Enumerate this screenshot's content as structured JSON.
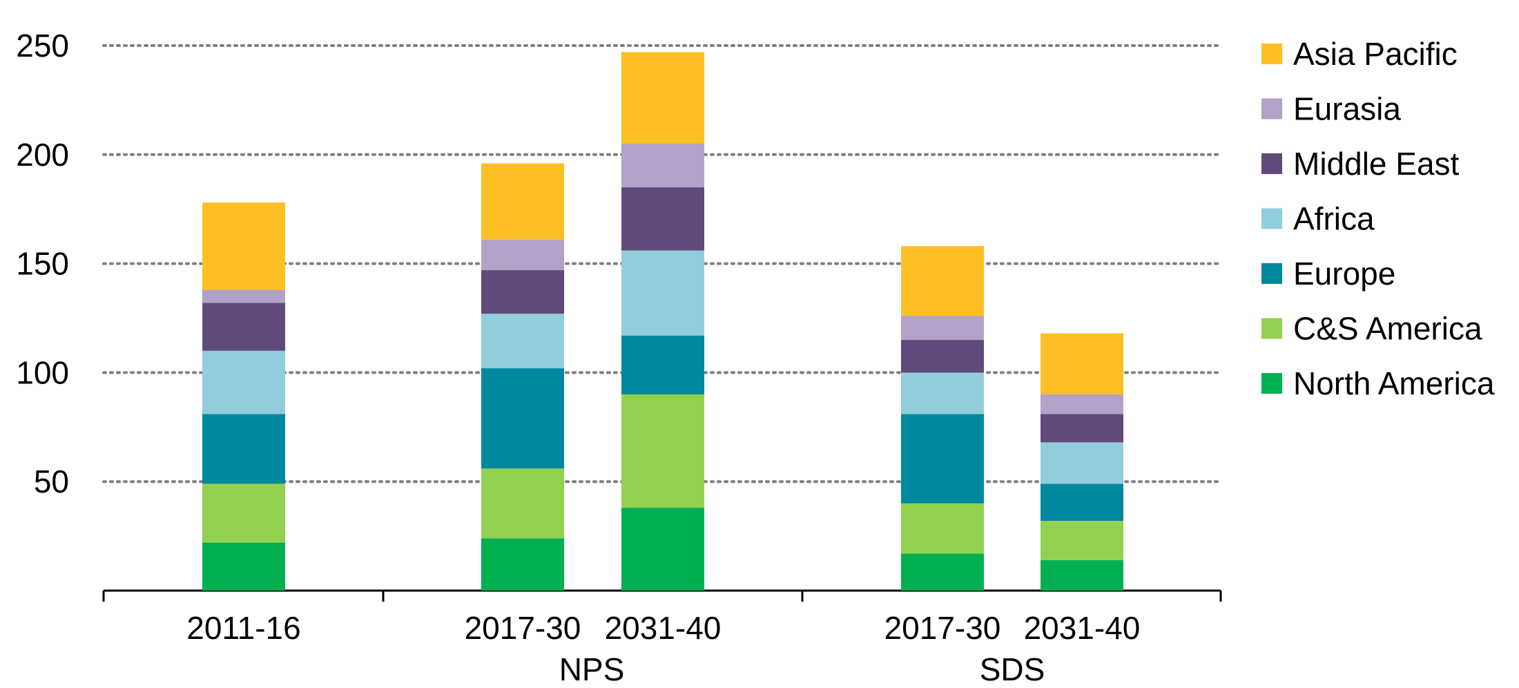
{
  "chart_data": {
    "type": "bar",
    "stacked": true,
    "title": "",
    "xlabel": "",
    "ylabel": "",
    "ylim": [
      0,
      250
    ],
    "yticks": [
      50,
      100,
      150,
      200,
      250
    ],
    "grid": true,
    "legend_position": "right",
    "bars": [
      {
        "label": "2011-16",
        "group": ""
      },
      {
        "label": "2017-30",
        "group": "NPS"
      },
      {
        "label": "2031-40",
        "group": "NPS"
      },
      {
        "label": "2017-30",
        "group": "SDS"
      },
      {
        "label": "2031-40",
        "group": "SDS"
      }
    ],
    "groups": [
      "NPS",
      "SDS"
    ],
    "series": [
      {
        "name": "North America",
        "color": "#00B050",
        "values": [
          22,
          24,
          38,
          17,
          14
        ]
      },
      {
        "name": "C&S America",
        "color": "#92D050",
        "values": [
          27,
          32,
          52,
          23,
          18
        ]
      },
      {
        "name": "Europe",
        "color": "#00889E",
        "values": [
          32,
          46,
          27,
          41,
          17
        ]
      },
      {
        "name": "Africa",
        "color": "#92CDDC",
        "values": [
          29,
          25,
          39,
          19,
          19
        ]
      },
      {
        "name": "Middle East",
        "color": "#604A7B",
        "values": [
          22,
          20,
          29,
          15,
          13
        ]
      },
      {
        "name": "Eurasia",
        "color": "#B3A2C7",
        "values": [
          6,
          14,
          20,
          11,
          9
        ]
      },
      {
        "name": "Asia Pacific",
        "color": "#FDBF24",
        "values": [
          40,
          35,
          42,
          32,
          28
        ]
      }
    ],
    "legend_order": [
      "Asia Pacific",
      "Eurasia",
      "Middle East",
      "Africa",
      "Europe",
      "C&S America",
      "North America"
    ]
  }
}
